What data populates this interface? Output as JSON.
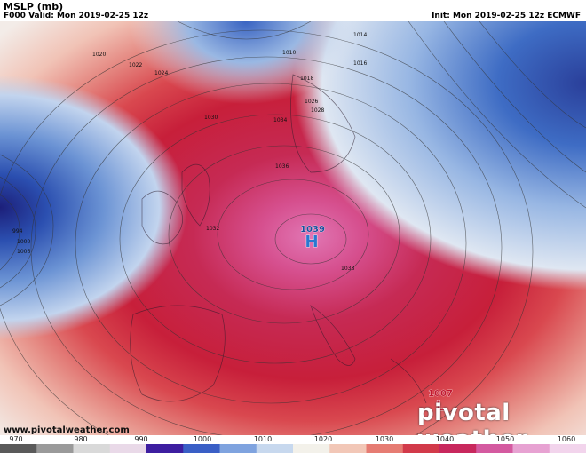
{
  "header": {
    "variable": "MSLP (mb)",
    "valid": "F000 Valid: Mon 2019-02-25 12z",
    "init": "Init: Mon 2019-02-25 12z ECMWF"
  },
  "footer": {
    "url": "www.pivotalweather.com",
    "logo": "pivotal weather"
  },
  "pressure_centers": [
    {
      "type": "H",
      "value": "1039"
    },
    {
      "type": "L",
      "value": "1007"
    }
  ],
  "isobar_labels": [
    "1010",
    "1014",
    "1016",
    "1018",
    "1020",
    "1022",
    "1024",
    "1026",
    "1028",
    "1030",
    "1032",
    "1034",
    "1036",
    "1038",
    "994",
    "1000",
    "1006"
  ],
  "colorbar": {
    "ticks": [
      "970",
      "980",
      "990",
      "1000",
      "1010",
      "1020",
      "1030",
      "1040",
      "1050",
      "1060"
    ],
    "colors": [
      "#5a5a5a",
      "#9a9a9a",
      "#d9d9d9",
      "#e9d9e8",
      "#3d1ea0",
      "#3a5fc6",
      "#7fa3df",
      "#c7d8ee",
      "#f3f1ea",
      "#f2c7b7",
      "#e67c73",
      "#d23a4a",
      "#c8285d",
      "#d45aa0",
      "#e7a2d2",
      "#f2d4ec"
    ]
  },
  "colors": {
    "high_red": "#c61e3c",
    "high_pink": "#d94c8e",
    "low_blue": "#2e5fb6",
    "neutral": "#f2eeea"
  }
}
